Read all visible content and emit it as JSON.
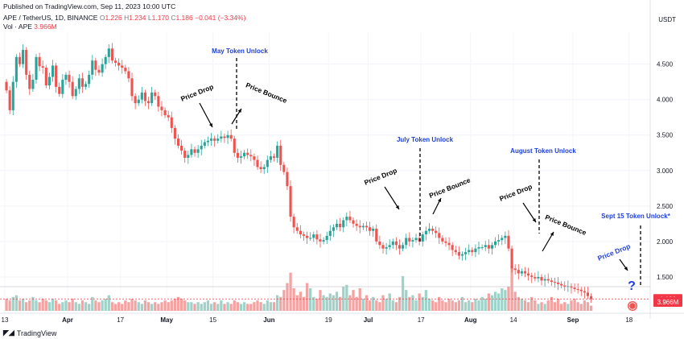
{
  "published": "Published on TradingView.com, Sep 11, 2023 10:00 UTC",
  "symbol_line": {
    "name": "APE / TetherUS, 1D, BINANCE",
    "o_label": "O",
    "o": "1.226",
    "h_label": "H",
    "h": "1.234",
    "l_label": "L",
    "l": "1.170",
    "c_label": "C",
    "c": "1.186",
    "change": "−0.041 (−3.34%)"
  },
  "vol_line": {
    "label": "Vol · APE",
    "value": "3.966M"
  },
  "currency": "USDT",
  "brand": "TradingView",
  "price_badge": "1.186",
  "volume_badge": "3.966M",
  "colors": {
    "up": "#26a69a",
    "down": "#ef5350",
    "vol_up": "#9fd3c9",
    "vol_down": "#f4a3a3",
    "annotation_blue": "#1e3fd8"
  },
  "chart_data": {
    "type": "candlestick",
    "title": "APE / TetherUS, 1D, BINANCE",
    "ylabel": "USDT",
    "ylim": [
      1.0,
      4.95
    ],
    "yticks": [
      "4.500",
      "4.000",
      "3.500",
      "3.000",
      "2.500",
      "2.000",
      "1.500"
    ],
    "ytick_values": [
      4.5,
      4.0,
      3.5,
      3.0,
      2.5,
      2.0,
      1.5
    ],
    "start_date": "2023-03-13",
    "xticks": [
      {
        "label": "13",
        "day": 0
      },
      {
        "label": "Apr",
        "day": 19
      },
      {
        "label": "17",
        "day": 35
      },
      {
        "label": "May",
        "day": 49
      },
      {
        "label": "15",
        "day": 63
      },
      {
        "label": "Jun",
        "day": 80
      },
      {
        "label": "19",
        "day": 98
      },
      {
        "label": "Jul",
        "day": 110
      },
      {
        "label": "17",
        "day": 126
      },
      {
        "label": "Aug",
        "day": 141
      },
      {
        "label": "14",
        "day": 154
      },
      {
        "label": "Sep",
        "day": 172
      },
      {
        "label": "18",
        "day": 189
      }
    ],
    "x_days": 191,
    "closes": [
      4.13,
      3.85,
      4.25,
      4.6,
      4.5,
      4.7,
      4.35,
      4.15,
      4.28,
      4.6,
      4.47,
      4.45,
      4.2,
      4.32,
      4.48,
      4.18,
      4.08,
      4.28,
      4.35,
      4.25,
      4.05,
      4.15,
      4.3,
      4.18,
      4.22,
      4.35,
      4.55,
      4.42,
      4.38,
      4.5,
      4.6,
      4.72,
      4.55,
      4.52,
      4.48,
      4.45,
      4.4,
      4.3,
      4.05,
      3.95,
      4.0,
      4.1,
      3.98,
      3.95,
      4.1,
      4.05,
      3.9,
      3.85,
      3.78,
      3.75,
      3.6,
      3.45,
      3.35,
      3.28,
      3.18,
      3.22,
      3.3,
      3.25,
      3.3,
      3.35,
      3.4,
      3.42,
      3.45,
      3.42,
      3.45,
      3.48,
      3.46,
      3.5,
      3.45,
      3.25,
      3.18,
      3.2,
      3.25,
      3.22,
      3.2,
      3.15,
      3.05,
      3.02,
      3.05,
      3.15,
      3.2,
      3.18,
      3.35,
      3.08,
      2.98,
      2.78,
      2.35,
      2.2,
      2.15,
      2.1,
      2.08,
      2.05,
      2.05,
      2.1,
      2.03,
      2.0,
      2.02,
      2.08,
      2.15,
      2.2,
      2.25,
      2.2,
      2.3,
      2.35,
      2.3,
      2.25,
      2.22,
      2.2,
      2.22,
      2.2,
      2.15,
      2.18,
      2.0,
      1.95,
      1.9,
      1.92,
      1.95,
      2.0,
      1.95,
      1.9,
      1.95,
      2.05,
      2.0,
      2.02,
      2.05,
      2.0,
      2.1,
      2.15,
      2.18,
      2.15,
      2.12,
      2.05,
      2.0,
      1.98,
      1.95,
      1.88,
      1.85,
      1.8,
      1.82,
      1.85,
      1.88,
      1.85,
      1.9,
      1.92,
      1.92,
      1.95,
      1.9,
      1.95,
      2.0,
      2.02,
      2.05,
      2.08,
      1.9,
      1.62,
      1.6,
      1.55,
      1.58,
      1.55,
      1.52,
      1.5,
      1.48,
      1.5,
      1.45,
      1.47,
      1.45,
      1.43,
      1.42,
      1.4,
      1.38,
      1.36,
      1.37,
      1.35,
      1.33,
      1.32,
      1.3,
      1.28,
      1.23,
      1.19
    ],
    "volumes": [
      0.7,
      0.6,
      0.8,
      0.9,
      0.6,
      0.7,
      0.5,
      0.6,
      0.8,
      0.6,
      0.5,
      0.7,
      0.6,
      0.5,
      0.7,
      0.6,
      0.4,
      0.5,
      0.6,
      0.5,
      0.7,
      0.5,
      0.4,
      0.6,
      0.5,
      0.4,
      0.8,
      0.6,
      0.5,
      0.6,
      0.7,
      0.9,
      0.5,
      0.4,
      0.5,
      0.4,
      0.6,
      0.5,
      0.7,
      0.6,
      0.5,
      0.4,
      0.6,
      0.5,
      0.4,
      0.5,
      0.4,
      0.5,
      0.6,
      0.5,
      0.6,
      0.7,
      0.8,
      0.7,
      0.6,
      0.5,
      0.5,
      0.4,
      0.5,
      0.4,
      0.5,
      0.6,
      0.4,
      0.5,
      0.4,
      0.6,
      0.4,
      0.5,
      0.4,
      0.6,
      0.5,
      0.4,
      0.5,
      0.4,
      0.4,
      0.5,
      0.6,
      0.5,
      0.4,
      0.6,
      0.5,
      0.5,
      0.9,
      0.8,
      1.2,
      1.6,
      2.2,
      1.3,
      0.9,
      1.1,
      0.8,
      1.6,
      1.3,
      0.8,
      0.7,
      1.2,
      0.9,
      0.8,
      1.0,
      0.9,
      1.1,
      0.8,
      1.4,
      1.5,
      0.9,
      1.2,
      0.8,
      1.3,
      0.7,
      0.9,
      0.6,
      0.8,
      0.6,
      0.5,
      0.9,
      0.7,
      1.0,
      0.6,
      0.5,
      0.8,
      2.0,
      1.2,
      0.8,
      0.9,
      0.6,
      1.0,
      0.8,
      1.2,
      0.7,
      0.6,
      0.5,
      0.8,
      0.6,
      0.5,
      0.7,
      0.6,
      0.5,
      0.6,
      0.8,
      0.5,
      0.6,
      0.5,
      0.7,
      0.6,
      0.8,
      0.7,
      1.0,
      0.9,
      1.1,
      1.0,
      1.3,
      1.2,
      1.4,
      2.6,
      1.1,
      0.8,
      0.7,
      0.6,
      0.5,
      0.8,
      0.6,
      0.4,
      0.5,
      0.4,
      0.6,
      0.8,
      0.5,
      0.7,
      0.4,
      0.5,
      0.4,
      0.6,
      0.7,
      0.5,
      0.4,
      0.6,
      0.5,
      0.3
    ],
    "annotations": [
      {
        "text": "May Token Unlock",
        "color": "blue",
        "day": 63
      },
      {
        "text": "July Token Unlock",
        "color": "blue",
        "day": 116
      },
      {
        "text": "August Token Unlock",
        "color": "blue",
        "day": 158
      },
      {
        "text": "Sept 15 Token Unlock*",
        "color": "blue",
        "day": 186
      },
      {
        "text": "Price Drop",
        "color": "black",
        "day": 54
      },
      {
        "text": "Price Bounce",
        "color": "black",
        "day": 73
      },
      {
        "text": "Price Drop",
        "color": "black",
        "day": 107
      },
      {
        "text": "Price Bounce",
        "color": "black",
        "day": 126
      },
      {
        "text": "Price Drop",
        "color": "black",
        "day": 151
      },
      {
        "text": "Price Bounce",
        "color": "black",
        "day": 166
      },
      {
        "text": "Price Drop",
        "color": "blue",
        "day": 180
      },
      {
        "text": "?",
        "color": "blue",
        "day": 185
      }
    ]
  }
}
